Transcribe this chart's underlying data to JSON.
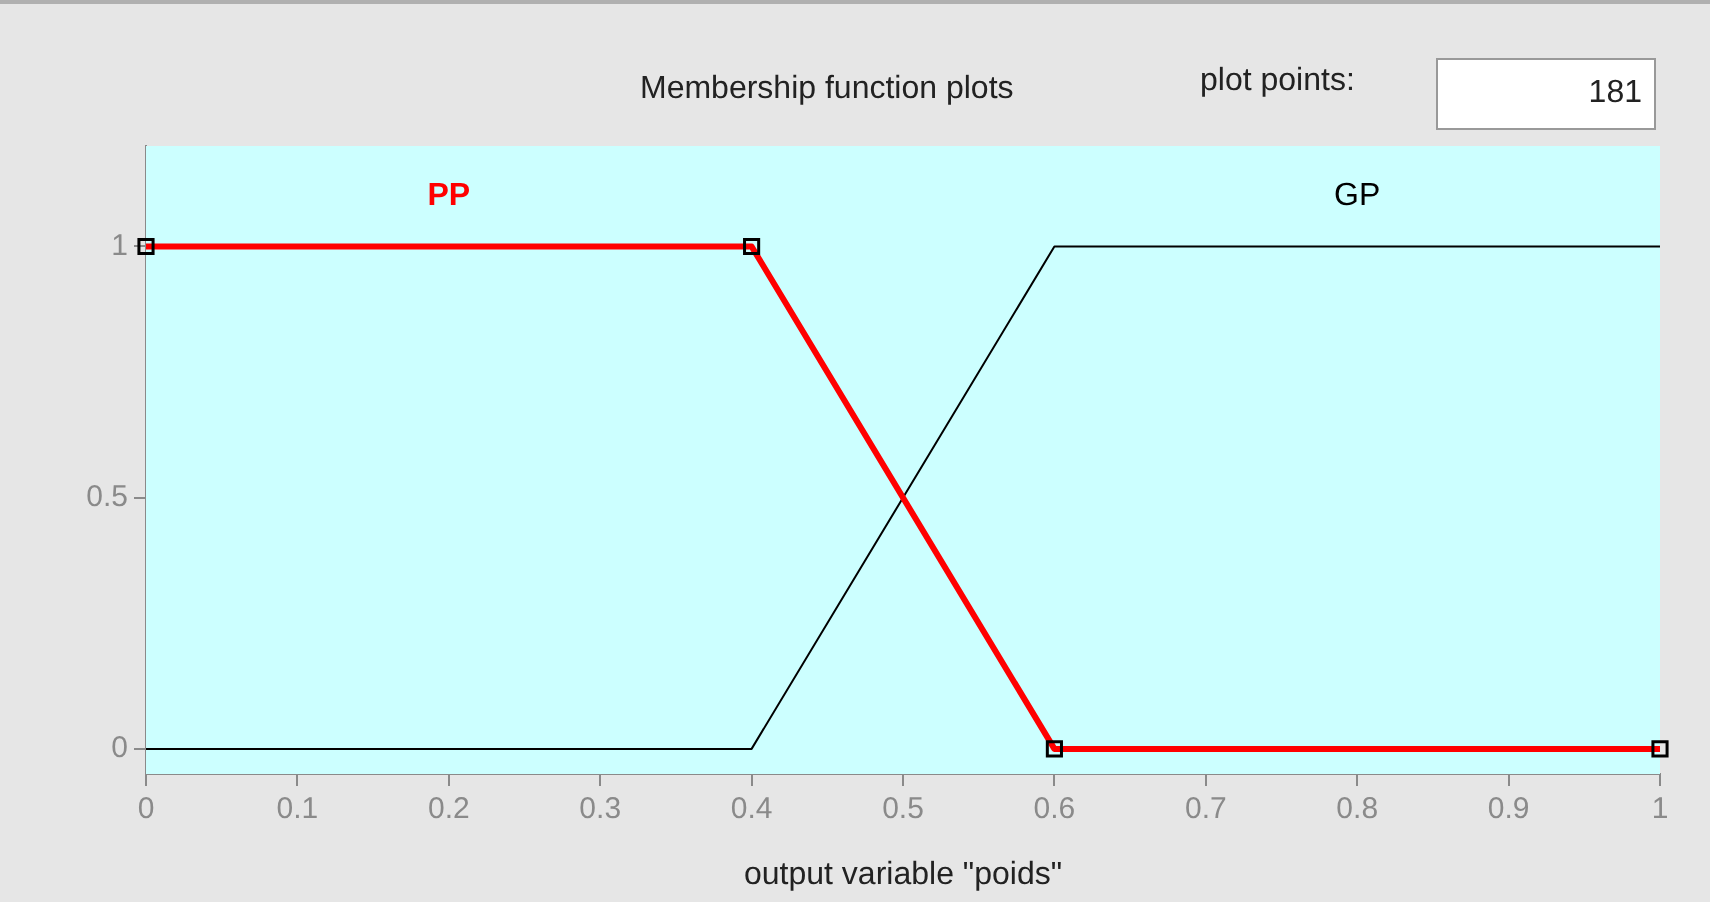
{
  "chart_data": {
    "type": "line",
    "title": "Membership function plots",
    "xlabel": "output variable \"poids\"",
    "annotations": [
      "plot points:",
      "181"
    ],
    "xlim": [
      0,
      1
    ],
    "xticks": [
      0,
      0.1,
      0.2,
      0.3,
      0.4,
      0.5,
      0.6,
      0.7,
      0.8,
      0.9,
      1
    ],
    "ylim": [
      -0.05,
      1.2
    ],
    "yticks": [
      0,
      0.5,
      1
    ],
    "grid": false,
    "legend": false,
    "series": [
      {
        "name": "PP",
        "color": "#ff0000",
        "x": [
          0,
          0.4,
          0.6,
          1
        ],
        "values": [
          1,
          1,
          0,
          0
        ],
        "marker": "square"
      },
      {
        "name": "GP",
        "color": "#000000",
        "x": [
          0,
          0.4,
          0.6,
          1
        ],
        "values": [
          0,
          0,
          1,
          1
        ],
        "marker": "none"
      }
    ]
  }
}
